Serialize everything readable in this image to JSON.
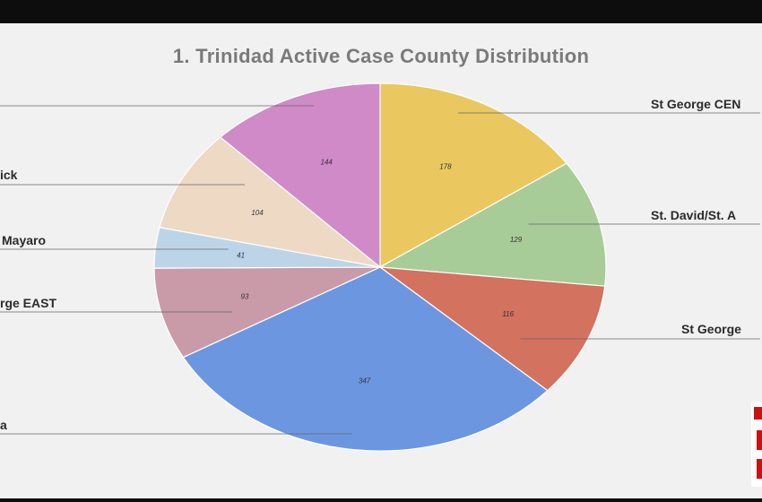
{
  "chart_data": {
    "type": "pie",
    "title": "1. Trinidad Active Case County Distribution",
    "slices": [
      {
        "label": "St George CEN",
        "value": 178,
        "color": "#ebc85f"
      },
      {
        "label": "St. David/St. A",
        "value": 129,
        "color": "#a8cc98"
      },
      {
        "label": "St George",
        "value": 116,
        "color": "#d2725f"
      },
      {
        "label": "a",
        "value": 347,
        "color": "#6c97e0"
      },
      {
        "label": "rge EAST",
        "value": 93,
        "color": "#c99aa8"
      },
      {
        "label": "Mayaro",
        "value": 41,
        "color": "#bcd4e8"
      },
      {
        "label": "ick",
        "value": 104,
        "color": "#eed9c4"
      },
      {
        "label": "",
        "value": 144,
        "color": "#d08ac8"
      }
    ]
  }
}
